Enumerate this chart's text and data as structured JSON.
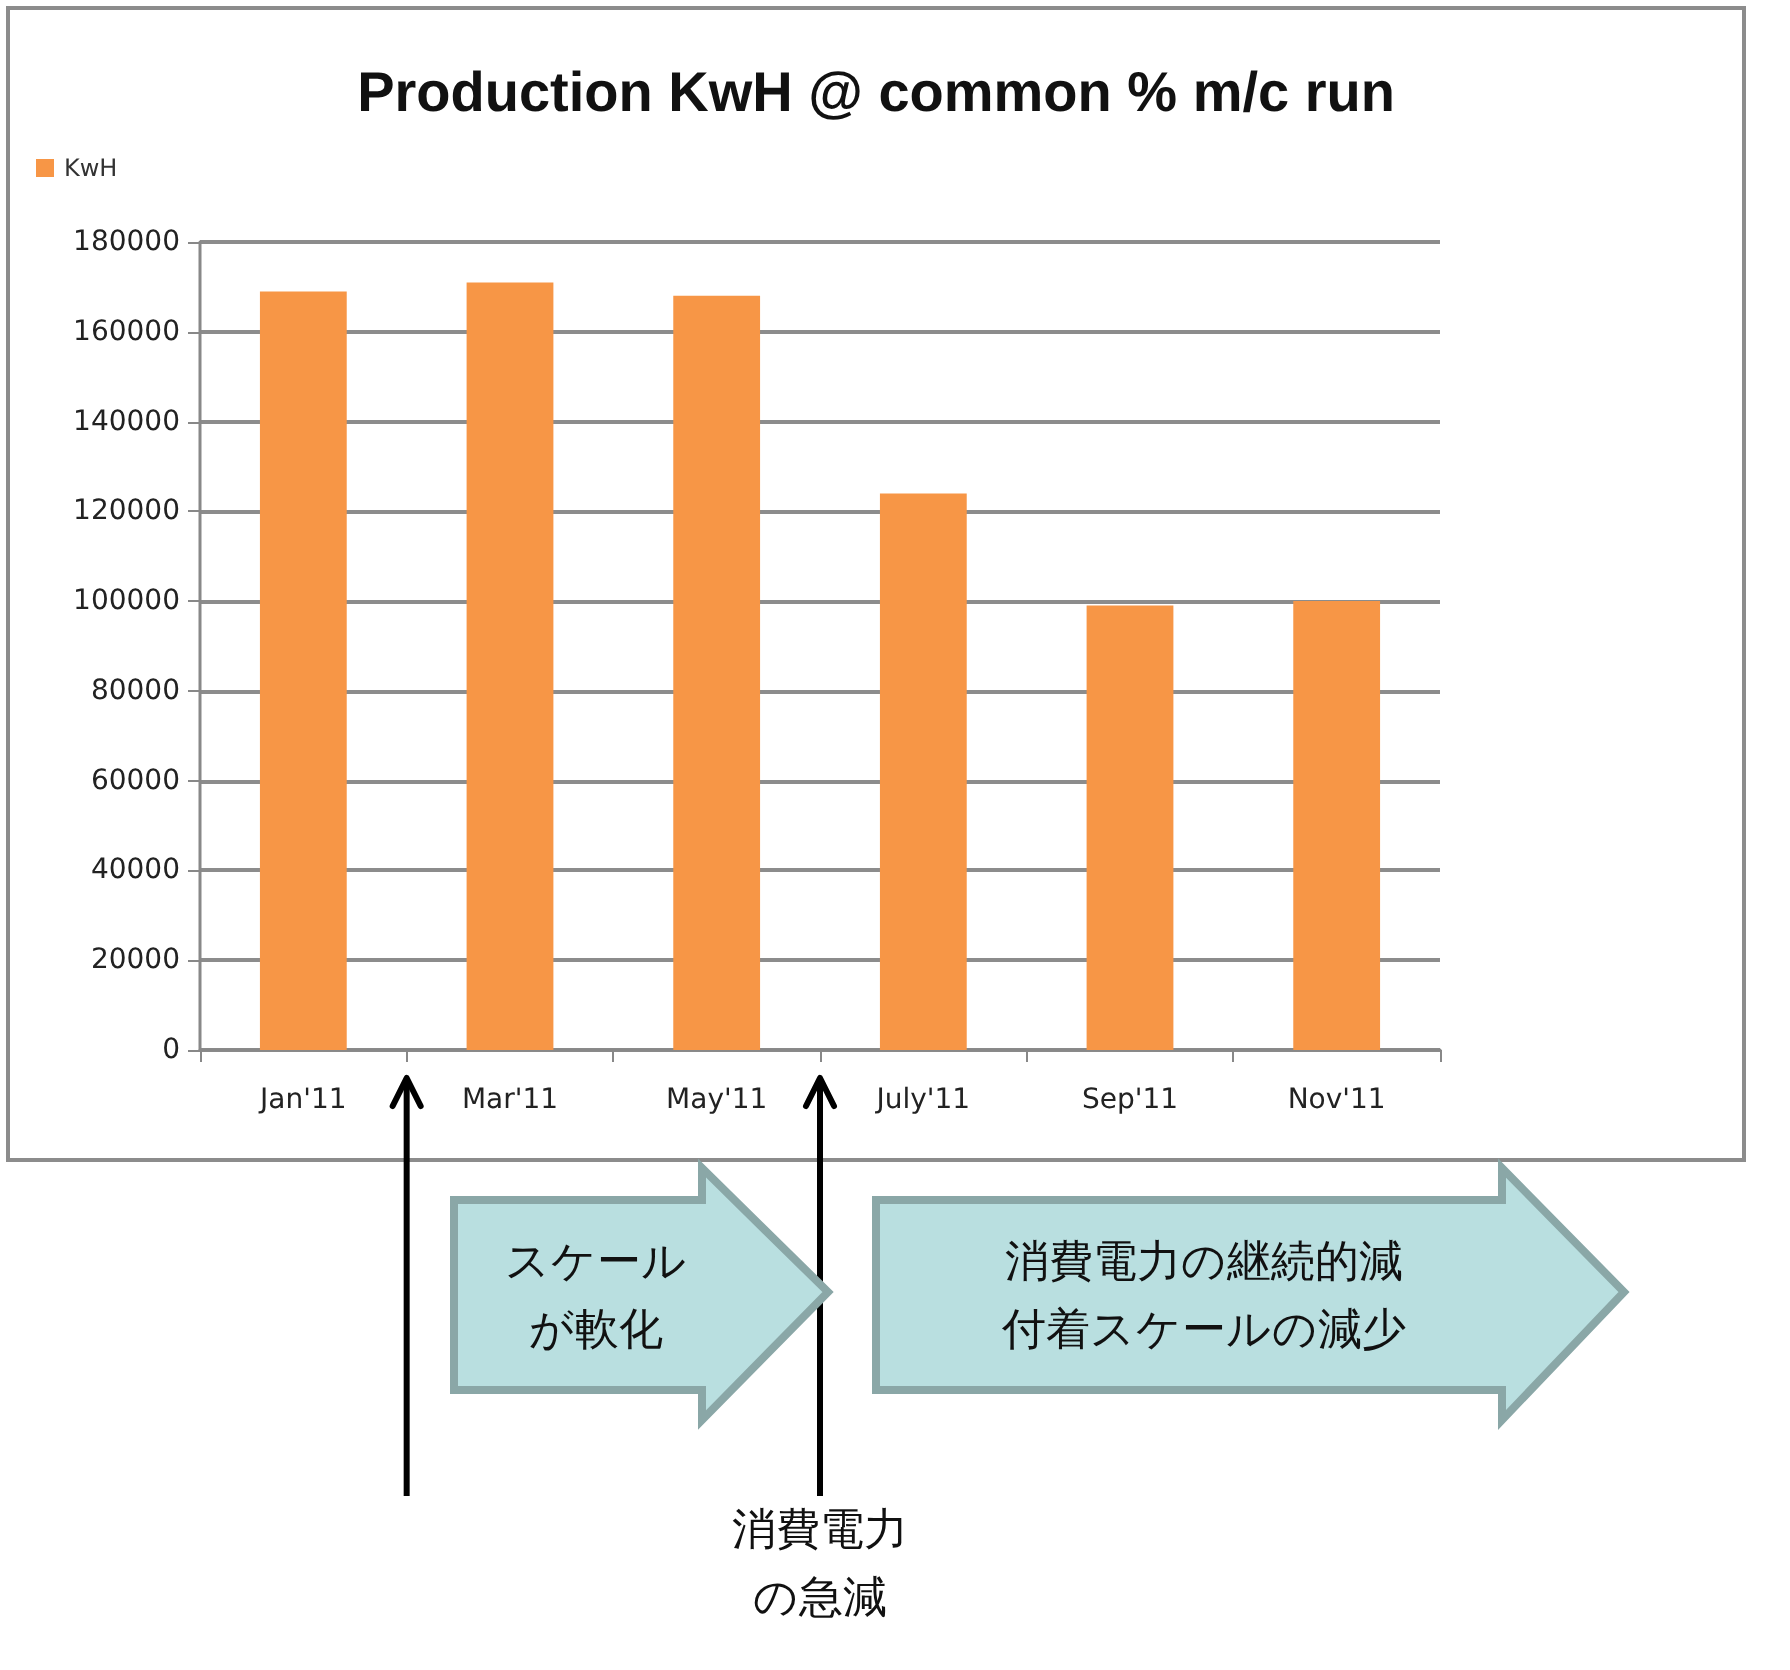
{
  "chart_data": {
    "type": "bar",
    "title": "Production KwH @ common % m/c run",
    "categories": [
      "Jan'11",
      "Mar'11",
      "May'11",
      "July'11",
      "Sep'11",
      "Nov'11"
    ],
    "series": [
      {
        "name": "KwH",
        "color": "#f79646",
        "values": [
          169000,
          171000,
          168000,
          124000,
          99000,
          100000
        ]
      }
    ],
    "ylim": [
      0,
      180000
    ],
    "yticks": [
      0,
      20000,
      40000,
      60000,
      80000,
      100000,
      120000,
      140000,
      160000,
      180000
    ],
    "grid": "y",
    "legend": "top left",
    "annotations": [
      "スケールが軟化",
      "消費電力の継続的減付着スケールの減少",
      "消費電力の急減"
    ]
  }
}
